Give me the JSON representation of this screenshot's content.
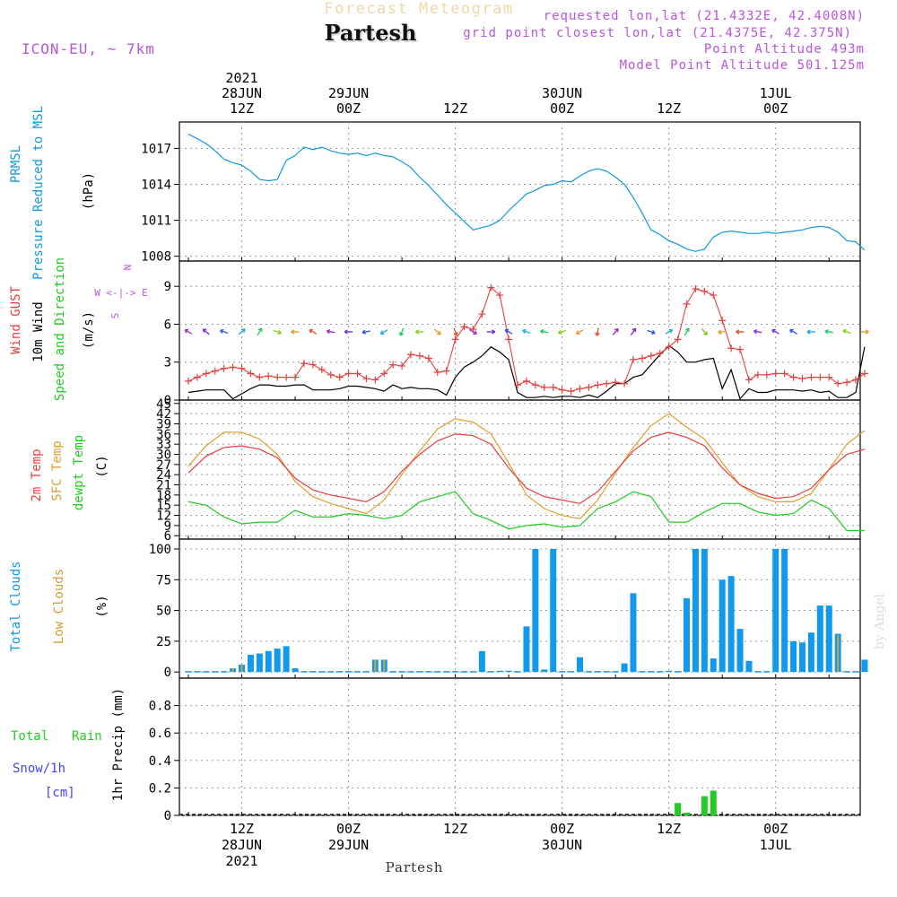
{
  "header": {
    "title": "Forecast Meteogram",
    "location": "Partesh",
    "model": "ICON-EU, ~ 7km",
    "requested": "requested lon,lat (21.4332E, 42.4008N)",
    "grid_point": "grid point closest lon,lat (21.4375E, 42.375N)",
    "point_altitude": "Point Altitude 493m",
    "model_altitude": "Model Point Altitude 501.125m",
    "footer_location": "Partesh",
    "credit": "by Angel"
  },
  "colors": {
    "pressure": "#1199dd",
    "gust": "#e84040",
    "wind": "#000000",
    "temp2m": "#e84040",
    "sfc": "#e0a030",
    "dewpt": "#22cc22",
    "total_clouds": "#1199ee",
    "low_clouds": "#d4a030",
    "rain": "#22cc22",
    "snow": "#4444ee",
    "violet": "#bb55dd"
  },
  "time_axis": {
    "top_labels": [
      {
        "t": 6,
        "lines": [
          "2021",
          "28JUN",
          "12Z"
        ]
      },
      {
        "t": 18,
        "lines": [
          "29JUN",
          "00Z"
        ]
      },
      {
        "t": 30,
        "lines": [
          "12Z"
        ]
      },
      {
        "t": 42,
        "lines": [
          "30JUN",
          "00Z"
        ]
      },
      {
        "t": 54,
        "lines": [
          "12Z"
        ]
      },
      {
        "t": 66,
        "lines": [
          "1JUL",
          "00Z"
        ]
      }
    ],
    "bottom_labels": [
      {
        "t": 6,
        "lines": [
          "12Z",
          "28JUN",
          "2021"
        ]
      },
      {
        "t": 18,
        "lines": [
          "00Z",
          "29JUN"
        ]
      },
      {
        "t": 30,
        "lines": [
          "12Z"
        ]
      },
      {
        "t": 42,
        "lines": [
          "00Z",
          "30JUN"
        ]
      },
      {
        "t": 54,
        "lines": [
          "12Z"
        ]
      },
      {
        "t": 66,
        "lines": [
          "00Z",
          "1JUL"
        ]
      }
    ]
  },
  "panels": {
    "pressure": {
      "labels": [
        "PRMSL",
        "Pressure Reduced to MSL",
        "(hPa)"
      ]
    },
    "wind": {
      "labels": [
        "Wind GUST",
        "10m Wind",
        "Speed and Direction",
        "(m/s)"
      ],
      "compass": [
        "N",
        "W <-|-> E",
        "S"
      ]
    },
    "temp": {
      "labels": [
        "2m Temp",
        "SFC Temp",
        "dewpt Temp",
        "(C)"
      ]
    },
    "clouds": {
      "labels": [
        "Total Clouds",
        "Low Clouds",
        "(%)"
      ]
    },
    "precip": {
      "labels": [
        "Total",
        "Rain",
        "Snow/1h",
        "[cm]",
        "1hr Precip (mm)"
      ]
    }
  },
  "chart_data": [
    {
      "type": "line",
      "title": "PRMSL Pressure Reduced to MSL",
      "ylabel": "(hPa)",
      "ylim": [
        1007.6,
        1019.2
      ],
      "yticks": [
        1008,
        1011,
        1014,
        1017
      ],
      "x": [
        0,
        1,
        2,
        3,
        4,
        5,
        6,
        7,
        8,
        9,
        10,
        11,
        12,
        13,
        14,
        15,
        16,
        17,
        18,
        19,
        20,
        21,
        22,
        23,
        24,
        25,
        26,
        27,
        28,
        29,
        30,
        31,
        32,
        33,
        34,
        35,
        36,
        37,
        38,
        39,
        40,
        41,
        42,
        43,
        44,
        45,
        46,
        47,
        48,
        49,
        50,
        51,
        52,
        53,
        54,
        55,
        56,
        57,
        58,
        59,
        60,
        61,
        62,
        63,
        64,
        65,
        66,
        67,
        68,
        69,
        70,
        71,
        72,
        73,
        74,
        75,
        76
      ],
      "series": [
        {
          "name": "PRMSL",
          "values": [
            1018.2,
            1017.8,
            1017.4,
            1016.8,
            1016.1,
            1015.8,
            1015.6,
            1015.1,
            1014.4,
            1014.3,
            1014.4,
            1016.0,
            1016.4,
            1017.1,
            1016.9,
            1017.1,
            1016.8,
            1016.6,
            1016.5,
            1016.6,
            1016.4,
            1016.6,
            1016.4,
            1016.3,
            1015.9,
            1015.4,
            1014.6,
            1013.9,
            1013.1,
            1012.3,
            1011.6,
            1010.9,
            1010.2,
            1010.4,
            1010.6,
            1011.0,
            1011.8,
            1012.5,
            1013.2,
            1013.5,
            1013.9,
            1014.0,
            1014.3,
            1014.2,
            1014.7,
            1015.1,
            1015.3,
            1015.1,
            1014.6,
            1014.0,
            1012.9,
            1011.6,
            1010.2,
            1009.8,
            1009.3,
            1009.0,
            1008.6,
            1008.4,
            1008.6,
            1009.6,
            1010.0,
            1010.1,
            1010.0,
            1009.9,
            1009.9,
            1010.0,
            1009.9,
            1010.0,
            1010.1,
            1010.2,
            1010.4,
            1010.5,
            1010.4,
            1010.0,
            1009.3,
            1009.2,
            1008.5
          ]
        }
      ]
    },
    {
      "type": "line",
      "title": "Wind GUST / 10m Wind Speed and Direction",
      "ylabel": "(m/s)",
      "ylim": [
        0,
        11
      ],
      "yticks": [
        0,
        3,
        6,
        9
      ],
      "x": [
        0,
        1,
        2,
        3,
        4,
        5,
        6,
        7,
        8,
        9,
        10,
        11,
        12,
        13,
        14,
        15,
        16,
        17,
        18,
        19,
        20,
        21,
        22,
        23,
        24,
        25,
        26,
        27,
        28,
        29,
        30,
        31,
        32,
        33,
        34,
        35,
        36,
        37,
        38,
        39,
        40,
        41,
        42,
        43,
        44,
        45,
        46,
        47,
        48,
        49,
        50,
        51,
        52,
        53,
        54,
        55,
        56,
        57,
        58,
        59,
        60,
        61,
        62,
        63,
        64,
        65,
        66,
        67,
        68,
        69,
        70,
        71,
        72,
        73,
        74,
        75,
        76
      ],
      "series": [
        {
          "name": "Wind GUST",
          "values": [
            1.5,
            1.8,
            2.1,
            2.3,
            2.5,
            2.6,
            2.5,
            2.1,
            1.8,
            1.9,
            1.8,
            1.8,
            1.8,
            2.9,
            2.8,
            2.4,
            2.0,
            1.8,
            2.1,
            2.1,
            1.7,
            1.6,
            2.1,
            2.8,
            2.7,
            3.6,
            3.5,
            3.3,
            2.2,
            2.3,
            4.8,
            5.8,
            5.6,
            6.8,
            8.9,
            8.3,
            4.8,
            1.2,
            1.5,
            1.2,
            1.0,
            1.0,
            0.8,
            0.7,
            0.9,
            1.0,
            1.2,
            1.3,
            1.4,
            1.3,
            3.2,
            3.3,
            3.5,
            3.7,
            4.2,
            4.8,
            7.6,
            8.8,
            8.6,
            8.3,
            6.3,
            4.1,
            4.0,
            1.6,
            2.0,
            2.0,
            2.1,
            2.1,
            1.8,
            1.7,
            1.8,
            1.8,
            1.8,
            1.3,
            1.4,
            1.6,
            2.1
          ]
        },
        {
          "name": "10m Wind",
          "values": [
            0.6,
            0.7,
            0.8,
            0.8,
            0.8,
            0.1,
            0.5,
            0.9,
            1.2,
            1.2,
            1.1,
            1.1,
            1.2,
            1.2,
            0.8,
            0.8,
            0.8,
            0.9,
            1.1,
            1.1,
            1.0,
            0.9,
            0.7,
            1.2,
            0.9,
            1.0,
            0.9,
            0.9,
            0.8,
            0.4,
            1.8,
            2.6,
            3.0,
            3.5,
            4.2,
            3.8,
            3.2,
            0.6,
            0.2,
            0.2,
            0.3,
            0.2,
            0.3,
            0.3,
            0.2,
            0.4,
            0.2,
            0.7,
            1.3,
            1.3,
            1.8,
            2.0,
            2.8,
            3.6,
            4.3,
            3.8,
            3.0,
            3.0,
            3.2,
            3.3,
            0.9,
            2.4,
            0.1,
            0.9,
            0.6,
            0.6,
            0.8,
            0.8,
            0.8,
            0.7,
            0.8,
            0.6,
            0.7,
            0.2,
            0.2,
            0.6,
            4.2
          ]
        }
      ]
    },
    {
      "type": "line",
      "title": "2m Temp / SFC Temp / dewpt Temp",
      "ylabel": "(C)",
      "ylim": [
        5,
        46
      ],
      "yticks": [
        6,
        9,
        12,
        15,
        18,
        21,
        24,
        27,
        30,
        33,
        36,
        39,
        42,
        45
      ],
      "x": [
        0,
        2,
        4,
        6,
        8,
        10,
        12,
        14,
        16,
        18,
        20,
        22,
        24,
        26,
        28,
        30,
        32,
        34,
        36,
        38,
        40,
        42,
        44,
        46,
        48,
        50,
        52,
        54,
        56,
        58,
        60,
        62,
        64,
        66,
        68,
        70,
        72,
        74,
        76
      ],
      "series": [
        {
          "name": "2m Temp",
          "values": [
            24.5,
            29.5,
            32.0,
            32.5,
            31.5,
            29.0,
            23.0,
            19.5,
            18.0,
            17.0,
            16.0,
            19.0,
            25.0,
            30.0,
            34.0,
            36.0,
            35.5,
            33.0,
            26.0,
            20.0,
            17.5,
            16.5,
            15.5,
            19.0,
            25.0,
            31.0,
            35.0,
            36.5,
            35.0,
            32.5,
            26.0,
            21.0,
            18.5,
            17.0,
            17.5,
            20.0,
            25.5,
            30.0,
            31.5
          ]
        },
        {
          "name": "SFC Temp",
          "values": [
            26.5,
            32.5,
            36.5,
            36.5,
            34.5,
            30.0,
            22.0,
            17.5,
            15.5,
            14.0,
            12.5,
            16.5,
            24.0,
            31.0,
            37.5,
            40.5,
            39.5,
            36.0,
            27.5,
            18.0,
            14.0,
            12.0,
            11.0,
            16.5,
            24.5,
            32.0,
            38.5,
            42.0,
            38.0,
            34.5,
            27.5,
            21.0,
            17.5,
            16.0,
            16.0,
            18.5,
            25.5,
            33.0,
            37.0
          ]
        },
        {
          "name": "dewpt Temp",
          "values": [
            16.0,
            15.0,
            11.5,
            9.5,
            10.0,
            10.0,
            13.5,
            11.5,
            11.5,
            12.5,
            12.0,
            11.0,
            12.0,
            16.0,
            17.5,
            19.0,
            12.5,
            10.5,
            8.0,
            9.0,
            9.5,
            8.5,
            9.0,
            14.0,
            16.0,
            19.0,
            17.5,
            10.0,
            10.0,
            13.0,
            15.5,
            15.5,
            13.0,
            12.0,
            12.5,
            16.5,
            14.0,
            7.5,
            7.5
          ]
        }
      ]
    },
    {
      "type": "bar",
      "title": "Total Clouds / Low Clouds",
      "ylabel": "(%)",
      "ylim": [
        -5,
        108
      ],
      "yticks": [
        0,
        25,
        50,
        75,
        100
      ],
      "x": [
        0,
        1,
        2,
        3,
        4,
        5,
        6,
        7,
        8,
        9,
        10,
        11,
        12,
        13,
        14,
        15,
        16,
        17,
        18,
        19,
        20,
        21,
        22,
        23,
        24,
        25,
        26,
        27,
        28,
        29,
        30,
        31,
        32,
        33,
        34,
        35,
        36,
        37,
        38,
        39,
        40,
        41,
        42,
        43,
        44,
        45,
        46,
        47,
        48,
        49,
        50,
        51,
        52,
        53,
        54,
        55,
        56,
        57,
        58,
        59,
        60,
        61,
        62,
        63,
        64,
        65,
        66,
        67,
        68,
        69,
        70,
        71,
        72,
        73,
        74,
        75,
        76
      ],
      "series": [
        {
          "name": "Total Clouds",
          "values": [
            0,
            0,
            0,
            0,
            0,
            3,
            6,
            14,
            15,
            17,
            19,
            21,
            3,
            0,
            0,
            0,
            0,
            0,
            0,
            0,
            0,
            10,
            10,
            0,
            0,
            0,
            0,
            0,
            0,
            0,
            0,
            0,
            0,
            17,
            0,
            1,
            1,
            0,
            37,
            100,
            2,
            100,
            0,
            0,
            12,
            0,
            0,
            0,
            0,
            7,
            64,
            0,
            0,
            0,
            1,
            0,
            60,
            100,
            100,
            11,
            75,
            78,
            35,
            9,
            0,
            0,
            100,
            100,
            25,
            24,
            32,
            54,
            54,
            31,
            0,
            0,
            10
          ]
        },
        {
          "name": "Low Clouds",
          "values": [
            0,
            0,
            0,
            0,
            0,
            3,
            6,
            0,
            0,
            0,
            0,
            0,
            0,
            0,
            0,
            0,
            0,
            0,
            0,
            0,
            0,
            10,
            10,
            0,
            0,
            0,
            0,
            0,
            0,
            0,
            0,
            0,
            0,
            0,
            0,
            0,
            0,
            0,
            0,
            0,
            0,
            0,
            0,
            0,
            0,
            0,
            0,
            0,
            0,
            0,
            0,
            0,
            0,
            0,
            0,
            0,
            0,
            0,
            0,
            0,
            0,
            0,
            0,
            0,
            0,
            0,
            0,
            0,
            0,
            0,
            0,
            0,
            0,
            30,
            0,
            0,
            0
          ]
        }
      ]
    },
    {
      "type": "bar",
      "title": "1hr Precip",
      "ylabel": "1hr Precip (mm)",
      "ylim": [
        0,
        1.0
      ],
      "yticks": [
        0,
        0.2,
        0.4,
        0.6,
        0.8
      ],
      "x": [
        55,
        56,
        58,
        59
      ],
      "series": [
        {
          "name": "Total Rain",
          "values": [
            0.09,
            0.02,
            0.14,
            0.18
          ]
        },
        {
          "name": "Snow/1h",
          "values": [
            0,
            0,
            0,
            0
          ]
        }
      ]
    },
    {
      "type": "scatter",
      "title": "10m Wind Direction (arrows)",
      "x": [
        0,
        2,
        4,
        6,
        8,
        10,
        12,
        14,
        16,
        18,
        20,
        22,
        24,
        26,
        28,
        30,
        32,
        34,
        36,
        38,
        40,
        42,
        44,
        46,
        48,
        50,
        52,
        54,
        56,
        58,
        60,
        62,
        64,
        66,
        68,
        70,
        72,
        74,
        76
      ],
      "direction_deg": [
        300,
        310,
        290,
        50,
        30,
        110,
        270,
        300,
        280,
        270,
        260,
        240,
        200,
        270,
        130,
        160,
        120,
        90,
        300,
        290,
        280,
        250,
        240,
        190,
        40,
        35,
        110,
        60,
        30,
        140,
        260,
        270,
        280,
        300,
        300,
        270,
        280,
        290,
        90
      ]
    }
  ]
}
